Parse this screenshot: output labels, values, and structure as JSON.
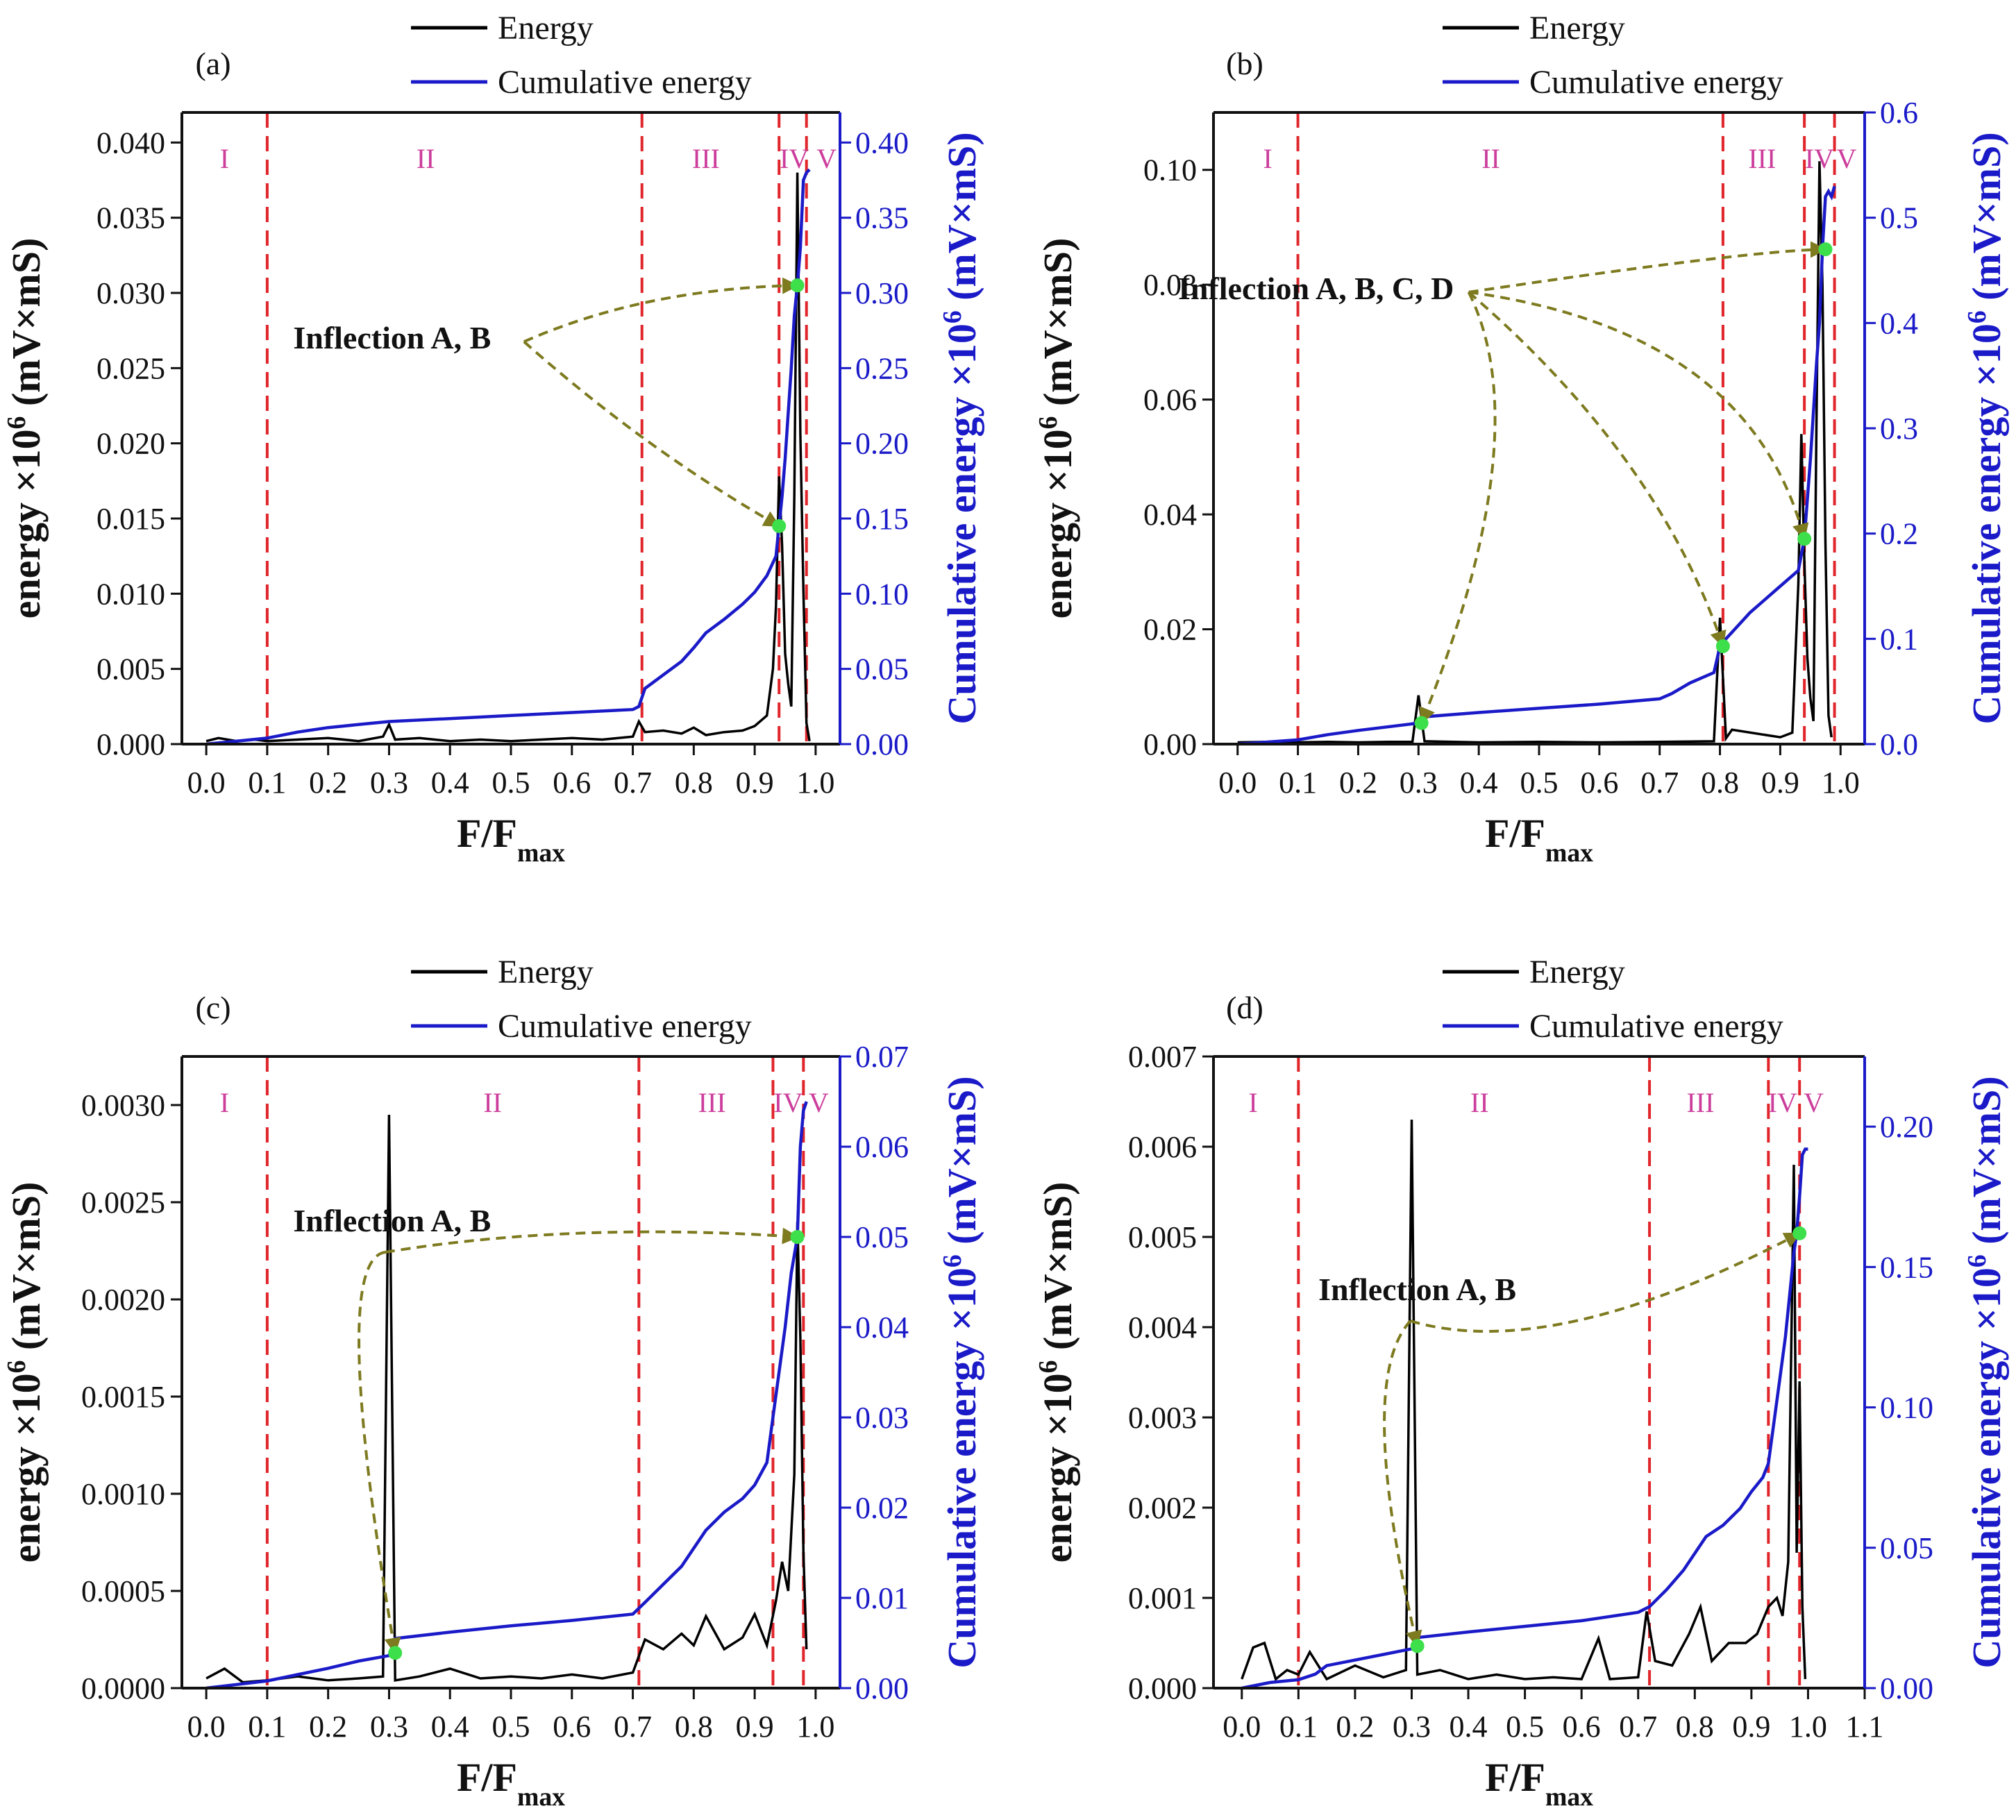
{
  "chart_data": [
    {
      "type": "line",
      "panel_label": "(a)",
      "xlabel": "F/F",
      "xlabel_sub": "max",
      "ylabel": "energy ×10",
      "ylabel_sup": "6",
      "ylabel_unit": " (mV×mS)",
      "y2label": "Cumulative energy ×10",
      "y2label_sup": "6",
      "y2label_unit": " (mV×mS)",
      "xlim": [
        -0.04,
        1.04
      ],
      "ylim": [
        0,
        0.042
      ],
      "y2lim": [
        0,
        0.42
      ],
      "xticks": [
        "0.0",
        "0.1",
        "0.2",
        "0.3",
        "0.4",
        "0.5",
        "0.6",
        "0.7",
        "0.8",
        "0.9",
        "1.0"
      ],
      "yticks": [
        "0.000",
        "0.005",
        "0.010",
        "0.015",
        "0.020",
        "0.025",
        "0.030",
        "0.035",
        "0.040"
      ],
      "y2ticks": [
        "0.00",
        "0.05",
        "0.10",
        "0.15",
        "0.20",
        "0.25",
        "0.30",
        "0.35",
        "0.40"
      ],
      "legend": [
        "Energy",
        "Cumulative energy"
      ],
      "stage_boundaries": [
        0.1,
        0.715,
        0.94,
        0.985
      ],
      "stage_labels": [
        "I",
        "II",
        "III",
        "IV",
        "V"
      ],
      "stage_label_x": [
        0.03,
        0.36,
        0.82,
        0.965,
        1.018
      ],
      "annotation": "Inflection A, B",
      "annotation_at": [
        0.305,
        0.0263
      ],
      "arrow_targets": [
        [
          0.94,
          0.145
        ],
        [
          0.97,
          0.305
        ]
      ],
      "arrow_bends": [
        [
          0.72,
          0.0196
        ],
        [
          0.72,
          0.0303
        ]
      ],
      "series": [
        {
          "name": "Energy",
          "color": "#000000",
          "x": [
            0.0,
            0.02,
            0.05,
            0.08,
            0.1,
            0.15,
            0.2,
            0.25,
            0.29,
            0.3,
            0.31,
            0.35,
            0.4,
            0.45,
            0.5,
            0.55,
            0.6,
            0.65,
            0.7,
            0.71,
            0.72,
            0.75,
            0.78,
            0.8,
            0.82,
            0.85,
            0.88,
            0.9,
            0.92,
            0.93,
            0.935,
            0.94,
            0.945,
            0.95,
            0.955,
            0.96,
            0.965,
            0.97,
            0.975,
            0.98,
            0.985,
            0.99
          ],
          "y": [
            0.0002,
            0.0004,
            0.0002,
            0.0003,
            0.0002,
            0.0003,
            0.0004,
            0.0002,
            0.0005,
            0.0013,
            0.0003,
            0.0004,
            0.0002,
            0.0003,
            0.0002,
            0.0003,
            0.0004,
            0.0003,
            0.0005,
            0.0015,
            0.0008,
            0.0009,
            0.0007,
            0.0011,
            0.0006,
            0.0008,
            0.0009,
            0.0012,
            0.0019,
            0.005,
            0.0092,
            0.0178,
            0.0132,
            0.006,
            0.004,
            0.0025,
            0.0165,
            0.038,
            0.0206,
            0.0102,
            0.0014,
            0.0002
          ]
        },
        {
          "name": "Cumulative energy",
          "color": "#1a1ac8",
          "x": [
            0.0,
            0.05,
            0.1,
            0.15,
            0.2,
            0.25,
            0.3,
            0.4,
            0.5,
            0.6,
            0.7,
            0.71,
            0.72,
            0.75,
            0.78,
            0.8,
            0.82,
            0.85,
            0.88,
            0.9,
            0.92,
            0.935,
            0.94,
            0.945,
            0.95,
            0.96,
            0.965,
            0.97,
            0.975,
            0.98,
            0.985,
            0.99
          ],
          "y": [
            0.0,
            0.002,
            0.004,
            0.008,
            0.011,
            0.013,
            0.015,
            0.017,
            0.019,
            0.021,
            0.023,
            0.025,
            0.037,
            0.046,
            0.055,
            0.064,
            0.074,
            0.083,
            0.093,
            0.101,
            0.112,
            0.125,
            0.145,
            0.165,
            0.19,
            0.25,
            0.285,
            0.305,
            0.33,
            0.375,
            0.38,
            0.382
          ]
        }
      ]
    },
    {
      "type": "line",
      "panel_label": "(b)",
      "xlabel": "F/F",
      "xlabel_sub": "max",
      "ylabel": "energy ×10",
      "ylabel_sup": "6",
      "ylabel_unit": " (mV×mS)",
      "y2label": "Cumulative energy ×10",
      "y2label_sup": "6",
      "y2label_unit": " (mV×mS)",
      "xlim": [
        -0.04,
        1.04
      ],
      "ylim": [
        0,
        0.11
      ],
      "y2lim": [
        0,
        0.6
      ],
      "xticks": [
        "0.0",
        "0.1",
        "0.2",
        "0.3",
        "0.4",
        "0.5",
        "0.6",
        "0.7",
        "0.8",
        "0.9",
        "1.0"
      ],
      "yticks": [
        "0.00",
        "0.02",
        "0.04",
        "0.06",
        "0.08",
        "0.10"
      ],
      "y2ticks": [
        "0.0",
        "0.1",
        "0.2",
        "0.3",
        "0.4",
        "0.5",
        "0.6"
      ],
      "legend": [
        "Energy",
        "Cumulative energy"
      ],
      "stage_boundaries": [
        0.1,
        0.805,
        0.94,
        0.99
      ],
      "stage_labels": [
        "I",
        "II",
        "III",
        "IV",
        "V"
      ],
      "stage_label_x": [
        0.05,
        0.42,
        0.87,
        0.965,
        1.01
      ],
      "annotation": "Inflection A, B, C, D",
      "annotation_at": [
        0.13,
        0.0775
      ],
      "arrow_targets": [
        [
          0.305,
          0.02
        ],
        [
          0.805,
          0.093
        ],
        [
          0.94,
          0.195
        ],
        [
          0.975,
          0.47
        ]
      ],
      "arrow_bends": [
        [
          0.5,
          0.054
        ],
        [
          0.7,
          0.05
        ],
        [
          0.85,
          0.072
        ],
        [
          0.85,
          0.086
        ]
      ],
      "series": [
        {
          "name": "Energy",
          "color": "#000000",
          "x": [
            0.0,
            0.05,
            0.1,
            0.15,
            0.2,
            0.25,
            0.29,
            0.3,
            0.31,
            0.4,
            0.5,
            0.6,
            0.7,
            0.79,
            0.8,
            0.81,
            0.82,
            0.9,
            0.92,
            0.93,
            0.935,
            0.94,
            0.945,
            0.95,
            0.955,
            0.96,
            0.965,
            0.97,
            0.975,
            0.98,
            0.985
          ],
          "y": [
            0.0003,
            0.0004,
            0.0003,
            0.0004,
            0.0003,
            0.0004,
            0.0004,
            0.0085,
            0.0005,
            0.0003,
            0.0004,
            0.0003,
            0.0004,
            0.0005,
            0.022,
            0.001,
            0.0025,
            0.0012,
            0.002,
            0.028,
            0.054,
            0.032,
            0.015,
            0.008,
            0.004,
            0.055,
            0.1015,
            0.08,
            0.035,
            0.005,
            0.0012
          ]
        },
        {
          "name": "Cumulative energy",
          "color": "#1a1ac8",
          "x": [
            0.0,
            0.05,
            0.1,
            0.15,
            0.2,
            0.3,
            0.31,
            0.4,
            0.5,
            0.6,
            0.7,
            0.72,
            0.75,
            0.79,
            0.8,
            0.81,
            0.85,
            0.9,
            0.93,
            0.94,
            0.95,
            0.96,
            0.965,
            0.97,
            0.975,
            0.98,
            0.985,
            0.99
          ],
          "y": [
            0.0,
            0.002,
            0.004,
            0.009,
            0.013,
            0.02,
            0.026,
            0.03,
            0.034,
            0.038,
            0.043,
            0.048,
            0.058,
            0.068,
            0.093,
            0.1,
            0.125,
            0.15,
            0.165,
            0.195,
            0.27,
            0.36,
            0.4,
            0.47,
            0.52,
            0.525,
            0.52,
            0.53
          ]
        }
      ]
    },
    {
      "type": "line",
      "panel_label": "(c)",
      "xlabel": "F/F",
      "xlabel_sub": "max",
      "ylabel": "energy ×10",
      "ylabel_sup": "6",
      "ylabel_unit": " (mV×mS)",
      "y2label": "Cumulative energy ×10",
      "y2label_sup": "6",
      "y2label_unit": " (mV×mS)",
      "xlim": [
        -0.04,
        1.04
      ],
      "ylim": [
        0,
        0.00325
      ],
      "y2lim": [
        0,
        0.07
      ],
      "xticks": [
        "0.0",
        "0.1",
        "0.2",
        "0.3",
        "0.4",
        "0.5",
        "0.6",
        "0.7",
        "0.8",
        "0.9",
        "1.0"
      ],
      "yticks": [
        "0.0000",
        "0.0005",
        "0.0010",
        "0.0015",
        "0.0020",
        "0.0025",
        "0.0030"
      ],
      "y2ticks": [
        "0.00",
        "0.01",
        "0.02",
        "0.03",
        "0.04",
        "0.05",
        "0.06",
        "0.07"
      ],
      "legend": [
        "Energy",
        "Cumulative energy"
      ],
      "stage_boundaries": [
        0.1,
        0.71,
        0.93,
        0.98
      ],
      "stage_labels": [
        "I",
        "II",
        "III",
        "IV",
        "V"
      ],
      "stage_label_x": [
        0.03,
        0.47,
        0.83,
        0.955,
        1.005
      ],
      "annotation": "Inflection A, B",
      "annotation_at": [
        0.305,
        0.00235
      ],
      "arrow_targets": [
        [
          0.31,
          0.0039
        ],
        [
          0.97,
          0.05
        ]
      ],
      "arrow_bends": [
        [
          0.2,
          0.0022
        ],
        [
          0.6,
          0.0024
        ]
      ],
      "series": [
        {
          "name": "Energy",
          "color": "#000000",
          "x": [
            0.0,
            0.03,
            0.06,
            0.1,
            0.15,
            0.2,
            0.25,
            0.29,
            0.3,
            0.31,
            0.35,
            0.4,
            0.45,
            0.5,
            0.55,
            0.6,
            0.65,
            0.7,
            0.72,
            0.75,
            0.78,
            0.8,
            0.82,
            0.85,
            0.88,
            0.9,
            0.92,
            0.935,
            0.945,
            0.955,
            0.965,
            0.97,
            0.975,
            0.98,
            0.985
          ],
          "y": [
            5e-05,
            0.0001,
            3e-05,
            4e-05,
            6e-05,
            4e-05,
            5e-05,
            6e-05,
            0.00295,
            4e-05,
            6e-05,
            0.0001,
            5e-05,
            6e-05,
            5e-05,
            7e-05,
            5e-05,
            8e-05,
            0.00025,
            0.0002,
            0.00028,
            0.00022,
            0.00037,
            0.0002,
            0.00026,
            0.00038,
            0.00022,
            0.00045,
            0.00065,
            0.0005,
            0.0011,
            0.0024,
            0.0018,
            0.0007,
            0.0002
          ]
        },
        {
          "name": "Cumulative energy",
          "color": "#1a1ac8",
          "x": [
            0.0,
            0.05,
            0.1,
            0.15,
            0.2,
            0.25,
            0.3,
            0.31,
            0.4,
            0.5,
            0.6,
            0.7,
            0.72,
            0.75,
            0.78,
            0.8,
            0.82,
            0.85,
            0.88,
            0.9,
            0.92,
            0.93,
            0.94,
            0.95,
            0.96,
            0.97,
            0.975,
            0.98,
            0.985
          ],
          "y": [
            0.0,
            0.0004,
            0.0008,
            0.0015,
            0.0022,
            0.003,
            0.0036,
            0.0055,
            0.0062,
            0.0069,
            0.0075,
            0.0082,
            0.0095,
            0.0115,
            0.0135,
            0.0155,
            0.0175,
            0.0195,
            0.021,
            0.0225,
            0.025,
            0.03,
            0.035,
            0.04,
            0.046,
            0.05,
            0.06,
            0.064,
            0.065
          ]
        }
      ]
    },
    {
      "type": "line",
      "panel_label": "(d)",
      "xlabel": "F/F",
      "xlabel_sub": "max",
      "ylabel": "energy ×10",
      "ylabel_sup": "6",
      "ylabel_unit": " (mV×mS)",
      "y2label": "Cumulative energy ×10",
      "y2label_sup": "6",
      "y2label_unit": " (mV×mS)",
      "xlim": [
        -0.05,
        1.1
      ],
      "ylim": [
        0,
        0.007
      ],
      "y2lim": [
        0,
        0.225
      ],
      "xticks": [
        "0.0",
        "0.1",
        "0.2",
        "0.3",
        "0.4",
        "0.5",
        "0.6",
        "0.7",
        "0.8",
        "0.9",
        "1.0",
        "1.1"
      ],
      "yticks": [
        "0.000",
        "0.001",
        "0.002",
        "0.003",
        "0.004",
        "0.005",
        "0.006",
        "0.007"
      ],
      "y2ticks": [
        "0.00",
        "0.05",
        "0.10",
        "0.15",
        "0.20"
      ],
      "legend": [
        "Energy",
        "Cumulative energy"
      ],
      "stage_boundaries": [
        0.1,
        0.72,
        0.93,
        0.985
      ],
      "stage_labels": [
        "I",
        "II",
        "III",
        "IV",
        "V"
      ],
      "stage_label_x": [
        0.02,
        0.42,
        0.81,
        0.955,
        1.01
      ],
      "annotation": "Inflection A, B",
      "annotation_at": [
        0.31,
        0.0043
      ],
      "arrow_targets": [
        [
          0.31,
          0.015
        ],
        [
          0.985,
          0.162
        ]
      ],
      "arrow_bends": [
        [
          0.2,
          0.0034
        ],
        [
          0.55,
          0.0036
        ]
      ],
      "series": [
        {
          "name": "Energy",
          "color": "#000000",
          "x": [
            0.0,
            0.02,
            0.04,
            0.06,
            0.08,
            0.1,
            0.12,
            0.15,
            0.2,
            0.25,
            0.29,
            0.3,
            0.31,
            0.35,
            0.4,
            0.45,
            0.5,
            0.55,
            0.6,
            0.63,
            0.65,
            0.7,
            0.715,
            0.73,
            0.76,
            0.79,
            0.81,
            0.83,
            0.86,
            0.89,
            0.91,
            0.93,
            0.945,
            0.955,
            0.965,
            0.975,
            0.98,
            0.985,
            0.99,
            0.995
          ],
          "y": [
            0.0001,
            0.00045,
            0.0005,
            0.0001,
            0.0002,
            0.00015,
            0.0004,
            0.0001,
            0.00025,
            0.00012,
            0.0002,
            0.0063,
            0.00015,
            0.0002,
            0.0001,
            0.00015,
            0.0001,
            0.00012,
            0.0001,
            0.00055,
            0.0001,
            0.00012,
            0.00085,
            0.0003,
            0.00025,
            0.0006,
            0.0009,
            0.0003,
            0.0005,
            0.0005,
            0.0006,
            0.0009,
            0.001,
            0.0008,
            0.0014,
            0.0058,
            0.0015,
            0.0034,
            0.0009,
            0.0001
          ]
        },
        {
          "name": "Cumulative energy",
          "color": "#1a1ac8",
          "x": [
            0.0,
            0.05,
            0.1,
            0.13,
            0.15,
            0.2,
            0.25,
            0.3,
            0.31,
            0.4,
            0.5,
            0.6,
            0.7,
            0.72,
            0.75,
            0.78,
            0.8,
            0.82,
            0.85,
            0.88,
            0.9,
            0.92,
            0.93,
            0.94,
            0.95,
            0.96,
            0.97,
            0.975,
            0.98,
            0.985,
            0.99,
            0.995,
            1.0
          ],
          "y": [
            0.0,
            0.002,
            0.003,
            0.005,
            0.008,
            0.01,
            0.012,
            0.014,
            0.018,
            0.02,
            0.022,
            0.024,
            0.027,
            0.029,
            0.035,
            0.042,
            0.048,
            0.054,
            0.058,
            0.064,
            0.07,
            0.075,
            0.08,
            0.095,
            0.11,
            0.125,
            0.145,
            0.155,
            0.162,
            0.175,
            0.19,
            0.192,
            0.192
          ]
        }
      ]
    }
  ]
}
